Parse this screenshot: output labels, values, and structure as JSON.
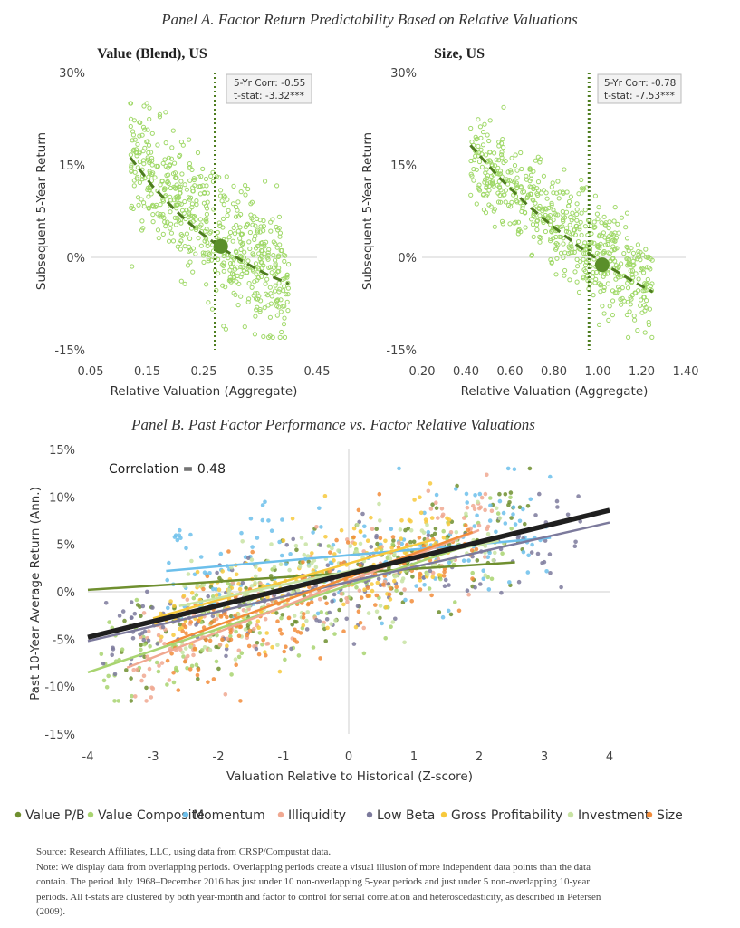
{
  "panel_a": {
    "title": "Panel A. Factor Return Predictability Based on Relative Valuations",
    "ylabel": "Subsequent 5-Year Return",
    "xlabel": "Relative Valuation (Aggregate)"
  },
  "panel_b": {
    "title": "Panel B. Past Factor Performance vs. Factor Relative Valuations",
    "ylabel": "Past 10-Year Average Return (Ann.)",
    "xlabel": "Valuation Relative to Historical (Z-score)",
    "correlation_text": "Correlation = 0.48"
  },
  "colors": {
    "Value P/B": "#6f8f2f",
    "Value Composite": "#a8d470",
    "Momentum": "#6cbfeb",
    "Illiquidity": "#f0a891",
    "Low Beta": "#7c7a9c",
    "Gross Profitability": "#f7c93c",
    "Investment": "#c8e3a3",
    "Size": "#f28c3a",
    "aggregate": "#1f1f1f",
    "scatter_a": "#9fd867",
    "fit_a": "#4e7d1f"
  },
  "chart_data": [
    {
      "type": "scatter",
      "title": "Value (Blend), US",
      "xlabel": "Relative Valuation (Aggregate)",
      "ylabel": "Subsequent 5-Year Return",
      "xlim": [
        0.05,
        0.45
      ],
      "ylim": [
        -15,
        30
      ],
      "x_ticks": [
        "0.05",
        "0.15",
        "0.25",
        "0.35",
        "0.45"
      ],
      "x_tick_values": [
        0.05,
        0.15,
        0.25,
        0.35,
        0.45
      ],
      "y_ticks": [
        "-15%",
        "0%",
        "15%",
        "30%"
      ],
      "y_tick_values": [
        -15,
        0,
        15,
        30
      ],
      "current_value_line_x": 0.27,
      "current_point": {
        "x": 0.28,
        "y": 1.8
      },
      "fit_curve": {
        "x": [
          0.12,
          0.16,
          0.2,
          0.24,
          0.28,
          0.32,
          0.36,
          0.4
        ],
        "y": [
          16.2,
          11.5,
          7.6,
          4.3,
          1.6,
          -0.7,
          -2.7,
          -4.3
        ]
      },
      "annotations": [
        "5-Yr Corr: -0.55",
        "t-stat: -3.32***"
      ],
      "point_cloud": {
        "count": 600,
        "x_range": [
          0.12,
          0.4
        ],
        "y_at_min_x": 16.5,
        "y_at_max_x": -4,
        "spread": 5
      }
    },
    {
      "type": "scatter",
      "title": "Size, US",
      "xlabel": "Relative Valuation (Aggregate)",
      "ylabel": "Subsequent 5-Year Return",
      "xlim": [
        0.2,
        1.4
      ],
      "ylim": [
        -15,
        30
      ],
      "x_ticks": [
        "0.20",
        "0.40",
        "0.60",
        "0.80",
        "1.00",
        "1.20",
        "1.40"
      ],
      "x_tick_values": [
        0.2,
        0.4,
        0.6,
        0.8,
        1.0,
        1.2,
        1.4
      ],
      "y_ticks": [
        "-15%",
        "0%",
        "15%",
        "30%"
      ],
      "y_tick_values": [
        -15,
        0,
        15,
        30
      ],
      "current_value_line_x": 0.96,
      "current_point": {
        "x": 1.02,
        "y": -1.2
      },
      "fit_curve": {
        "x": [
          0.42,
          0.55,
          0.68,
          0.8,
          0.92,
          1.04,
          1.16,
          1.25
        ],
        "y": [
          18.2,
          13.0,
          8.5,
          4.9,
          1.6,
          -1.3,
          -3.9,
          -5.6
        ]
      },
      "annotations": [
        "5-Yr Corr: -0.78",
        "t-stat: -7.53***"
      ],
      "point_cloud": {
        "count": 600,
        "x_range": [
          0.42,
          1.25
        ],
        "y_at_min_x": 17.5,
        "y_at_max_x": -5,
        "spread": 4
      }
    },
    {
      "type": "scatter",
      "title": "Panel B. Past Factor Performance vs. Factor Relative Valuations",
      "xlabel": "Valuation Relative to Historical (Z-score)",
      "ylabel": "Past 10-Year Average Return (Ann.)",
      "xlim": [
        -4,
        4
      ],
      "ylim": [
        -15,
        15
      ],
      "x_ticks": [
        "-4",
        "-3",
        "-2",
        "-1",
        "0",
        "1",
        "2",
        "3",
        "4"
      ],
      "x_tick_values": [
        -4,
        -3,
        -2,
        -1,
        0,
        1,
        2,
        3,
        4
      ],
      "y_ticks": [
        "-15%",
        "-10%",
        "-5%",
        "0%",
        "5%",
        "10%",
        "15%"
      ],
      "y_tick_values": [
        -15,
        -10,
        -5,
        0,
        5,
        10,
        15
      ],
      "legend_position": "bottom",
      "series": [
        {
          "name": "Value P/B",
          "fit": {
            "x": [
              -4,
              2.55
            ],
            "y": [
              0.2,
              3.1
            ]
          },
          "cloud": {
            "x_range": [
              -3.5,
              2.8
            ],
            "slope": 2.2,
            "intercept": 1.5,
            "spread": 2.8,
            "count": 160
          }
        },
        {
          "name": "Value Composite",
          "fit": {
            "x": [
              -4,
              2.1
            ],
            "y": [
              -8.5,
              5.5
            ]
          },
          "cloud": {
            "x_range": [
              -3.8,
              2.5
            ],
            "slope": 2.3,
            "intercept": 0.6,
            "spread": 2.6,
            "count": 160
          }
        },
        {
          "name": "Momentum",
          "fit": {
            "x": [
              -2.8,
              3.1
            ],
            "y": [
              2.2,
              5.7
            ]
          },
          "cloud": {
            "x_range": [
              -2.8,
              3.1
            ],
            "slope": 0.6,
            "intercept": 3.9,
            "spread": 3.2,
            "count": 160
          }
        },
        {
          "name": "Illiquidity",
          "fit": {
            "x": [
              -3.4,
              2.0
            ],
            "y": [
              -8.0,
              6.5
            ]
          },
          "cloud": {
            "x_range": [
              -3.3,
              2.2
            ],
            "slope": 2.7,
            "intercept": 1.2,
            "spread": 2.8,
            "count": 160
          }
        },
        {
          "name": "Low Beta",
          "fit": {
            "x": [
              -4,
              4
            ],
            "y": [
              -5.2,
              7.3
            ]
          },
          "cloud": {
            "x_range": [
              -3.8,
              3.6
            ],
            "slope": 1.6,
            "intercept": 0.6,
            "spread": 3.0,
            "count": 160
          }
        },
        {
          "name": "Gross Profitability",
          "fit": {
            "x": [
              -3,
              1.3
            ],
            "y": [
              -2.8,
              5.5
            ]
          },
          "cloud": {
            "x_range": [
              -3.0,
              1.6
            ],
            "slope": 1.9,
            "intercept": 2.0,
            "spread": 2.8,
            "count": 160
          }
        },
        {
          "name": "Investment",
          "fit": {
            "x": [
              -2.6,
              2.3
            ],
            "y": [
              -1.5,
              5.4
            ]
          },
          "cloud": {
            "x_range": [
              -2.6,
              2.4
            ],
            "slope": 1.4,
            "intercept": 2.1,
            "spread": 2.6,
            "count": 160
          }
        },
        {
          "name": "Size",
          "fit": {
            "x": [
              -2.8,
              1.9
            ],
            "y": [
              -5.5,
              6.3
            ]
          },
          "cloud": {
            "x_range": [
              -2.8,
              2.0
            ],
            "slope": 2.5,
            "intercept": 1.2,
            "spread": 2.8,
            "count": 160
          }
        }
      ],
      "aggregate_fit": {
        "x": [
          -4,
          4
        ],
        "y": [
          -4.8,
          8.6
        ]
      }
    }
  ],
  "source": {
    "line1": "Source: Research Affiliates, LLC, using data from CRSP/Compustat data.",
    "line2": "Note: We display data from overlapping periods. Overlapping periods create a visual illusion of more independent data points than the data",
    "line3": "contain. The period July 1968–December 2016 has just under 10 non-overlapping 5-year periods and just under 5 non-overlapping 10-year",
    "line4": "periods. All t-stats are clustered by both year-month and factor to control for serial correlation and heteroscedasticity, as described in Petersen",
    "line5": "(2009)."
  }
}
